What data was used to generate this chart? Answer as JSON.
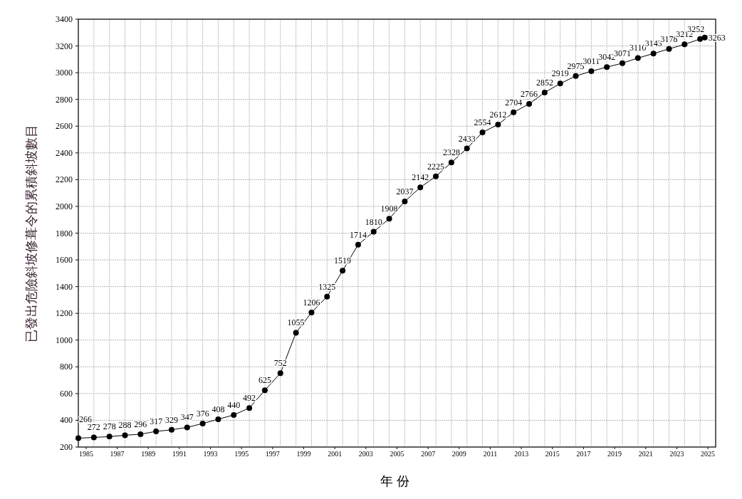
{
  "chart_data": {
    "type": "line",
    "xlabel": "年 份",
    "ylabel": "已發出危險斜坡修葺令的累積斜坡數目",
    "x": [
      1985,
      1986,
      1987,
      1988,
      1989,
      1990,
      1991,
      1992,
      1993,
      1994,
      1995,
      1996,
      1997,
      1998,
      1999,
      2000,
      2001,
      2002,
      2003,
      2004,
      2005,
      2006,
      2007,
      2008,
      2009,
      2010,
      2011,
      2012,
      2013,
      2014,
      2015,
      2016,
      2017,
      2018,
      2019,
      2020,
      2021,
      2022,
      2023,
      2024,
      2025,
      2025.3
    ],
    "series": [
      {
        "color": "#000000",
        "values": [
          266,
          272,
          278,
          288,
          296,
          317,
          329,
          347,
          376,
          408,
          440,
          492,
          625,
          752,
          1055,
          1206,
          1325,
          1519,
          1714,
          1810,
          1908,
          2037,
          2142,
          2225,
          2328,
          2433,
          2554,
          2612,
          2704,
          2766,
          2852,
          2919,
          2975,
          3011,
          3042,
          3071,
          3110,
          3143,
          3178,
          3212,
          3252,
          3263
        ]
      }
    ],
    "xlim": [
      1985,
      2026
    ],
    "xticks": [
      {
        "value": 1985,
        "label": null
      },
      {
        "value": 1986,
        "label": null
      },
      {
        "value": 1987,
        "label": null
      },
      {
        "value": 1988,
        "label": null
      },
      {
        "value": 1989,
        "label": null
      },
      {
        "value": 1990,
        "label": null
      },
      {
        "value": 1991,
        "label": null
      },
      {
        "value": 1992,
        "label": null
      },
      {
        "value": 1993,
        "label": null
      },
      {
        "value": 1994,
        "label": null
      },
      {
        "value": 1995,
        "label": null
      },
      {
        "value": 1996,
        "label": null
      },
      {
        "value": 1997,
        "label": null
      },
      {
        "value": 1998,
        "label": null
      },
      {
        "value": 1999,
        "label": null
      },
      {
        "value": 2000,
        "label": null
      },
      {
        "value": 2001,
        "label": null
      },
      {
        "value": 2002,
        "label": null
      },
      {
        "value": 2003,
        "label": null
      },
      {
        "value": 2004,
        "label": null
      },
      {
        "value": 2005,
        "label": null
      },
      {
        "value": 2006,
        "label": null
      },
      {
        "value": 2007,
        "label": null
      },
      {
        "value": 2008,
        "label": null
      },
      {
        "value": 2009,
        "label": null
      },
      {
        "value": 2010,
        "label": null
      },
      {
        "value": 2011,
        "label": null
      },
      {
        "value": 2012,
        "label": null
      },
      {
        "value": 2013,
        "label": null
      },
      {
        "value": 2014,
        "label": null
      },
      {
        "value": 2015,
        "label": null
      },
      {
        "value": 2016,
        "label": null
      },
      {
        "value": 2017,
        "label": null
      },
      {
        "value": 2018,
        "label": null
      },
      {
        "value": 2019,
        "label": null
      },
      {
        "value": 2020,
        "label": null
      },
      {
        "value": 2021,
        "label": null
      },
      {
        "value": 2022,
        "label": null
      },
      {
        "value": 2023,
        "label": null
      },
      {
        "value": 2024,
        "label": null
      },
      {
        "value": 2025,
        "label": null
      },
      {
        "value": 2026,
        "label": null
      },
      {
        "value": 1985.5,
        "label": "1985"
      },
      {
        "value": 1987.5,
        "label": "1987"
      },
      {
        "value": 1989.5,
        "label": "1989"
      },
      {
        "value": 1991.5,
        "label": "1991"
      },
      {
        "value": 1993.5,
        "label": "1993"
      },
      {
        "value": 1995.5,
        "label": "1995"
      },
      {
        "value": 1997.5,
        "label": "1997"
      },
      {
        "value": 1999.5,
        "label": "1999"
      },
      {
        "value": 2001.5,
        "label": "2001"
      },
      {
        "value": 2003.5,
        "label": "2003"
      },
      {
        "value": 2005.5,
        "label": "2005"
      },
      {
        "value": 2007.5,
        "label": "2007"
      },
      {
        "value": 2009.5,
        "label": "2009"
      },
      {
        "value": 2011.5,
        "label": "2011"
      },
      {
        "value": 2013.5,
        "label": "2013"
      },
      {
        "value": 2015.5,
        "label": "2015"
      },
      {
        "value": 2017.5,
        "label": "2017"
      },
      {
        "value": 2019.5,
        "label": "2019"
      },
      {
        "value": 2021.5,
        "label": "2021"
      },
      {
        "value": 2023.5,
        "label": "2023"
      },
      {
        "value": 2025.5,
        "label": "2025"
      }
    ],
    "ylim": [
      200,
      3400
    ],
    "yticks": [
      200,
      400,
      600,
      800,
      1000,
      1200,
      1400,
      1600,
      1800,
      2000,
      2200,
      2400,
      2600,
      2800,
      3000,
      3200,
      3400
    ],
    "grid": true,
    "marker": "circle",
    "line_style": "solid",
    "data_labels": true
  }
}
